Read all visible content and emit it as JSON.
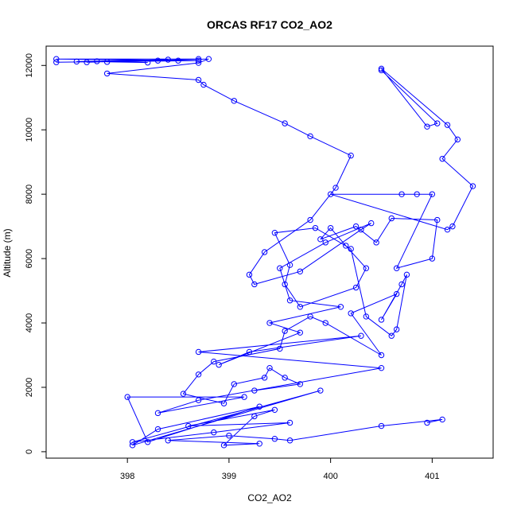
{
  "chart_data": {
    "type": "line",
    "title": "ORCAS RF17 CO2_AO2",
    "xlabel": "CO2_AO2",
    "ylabel": "Altitude (m)",
    "xlim": [
      397.2,
      401.6
    ],
    "ylim": [
      -200,
      12600
    ],
    "xticks": [
      398,
      399,
      400,
      401
    ],
    "yticks": [
      0,
      2000,
      4000,
      6000,
      8000,
      10000,
      12000
    ],
    "grid": false,
    "legend": "none",
    "marker": "open-circle",
    "color": "#0000ff",
    "series": [
      {
        "x": [
          398.7,
          397.3,
          398.7,
          397.3,
          398.5,
          397.5,
          398.4,
          397.6,
          398.3,
          397.7,
          398.2,
          397.8,
          398.8,
          398.7,
          397.8,
          398.7,
          398.75,
          399.05,
          399.55,
          399.8,
          400.2,
          400.05,
          399.8,
          399.35,
          399.2,
          399.25,
          399.7,
          400.3,
          400.4,
          399.95,
          399.5,
          399.6,
          400.1,
          399.4,
          399.7,
          398.9,
          399.2,
          400.3,
          398.7,
          400.5,
          398.7,
          398.3,
          399.15,
          398.0,
          398.2,
          399.3,
          398.3,
          398.05,
          399.9,
          398.05,
          398.85,
          399.6,
          398.6,
          399.45,
          399.25,
          398.95,
          399.3,
          398.4,
          399.0,
          399.45,
          399.6,
          400.5,
          401.1,
          400.95
        ],
        "y": [
          12200,
          12200,
          12150,
          12100,
          12150,
          12120,
          12180,
          12100,
          12150,
          12130,
          12090,
          12110,
          12200,
          12080,
          11750,
          11550,
          11400,
          10900,
          10200,
          9800,
          9200,
          8200,
          7200,
          6200,
          5500,
          5200,
          5600,
          6900,
          7100,
          6500,
          5700,
          4700,
          4500,
          4000,
          3700,
          2700,
          3100,
          3600,
          3100,
          2600,
          1600,
          1200,
          1700,
          1700,
          300,
          1400,
          700,
          200,
          1900,
          300,
          600,
          900,
          800,
          1300,
          1100,
          200,
          250,
          350,
          500,
          400,
          350,
          800,
          1000,
          900
        ]
      },
      {
        "x": [
          400.5,
          401.05,
          400.95,
          400.5,
          401.15,
          401.25,
          401.1,
          401.4,
          401.2,
          401.15,
          400.0,
          400.7,
          400.85,
          401.0,
          400.65,
          401.0,
          401.05,
          400.6,
          400.45,
          400.25,
          399.9,
          400.0,
          400.15,
          400.35,
          400.25,
          399.7,
          399.55,
          399.6,
          399.45,
          399.85,
          400.2,
          400.35,
          400.6,
          400.65,
          400.75,
          400.7,
          400.5,
          400.65,
          400.2,
          400.5,
          399.95,
          399.8,
          399.55,
          399.5,
          398.85,
          398.7,
          398.55,
          398.95,
          399.05,
          399.35,
          399.4,
          399.55,
          399.7,
          399.25
        ],
        "y": [
          11850,
          10200,
          10100,
          11900,
          10150,
          9700,
          9100,
          8250,
          7000,
          6900,
          8000,
          8000,
          8000,
          8000,
          5700,
          6000,
          7200,
          7250,
          6500,
          7000,
          6600,
          6950,
          6400,
          5700,
          5100,
          4500,
          5200,
          5800,
          6800,
          6950,
          6300,
          4200,
          3600,
          3800,
          5500,
          5200,
          4100,
          4900,
          4300,
          3000,
          4000,
          4200,
          3750,
          3200,
          2800,
          2400,
          1800,
          1500,
          2100,
          2300,
          2600,
          2300,
          2100,
          1900
        ]
      }
    ]
  }
}
